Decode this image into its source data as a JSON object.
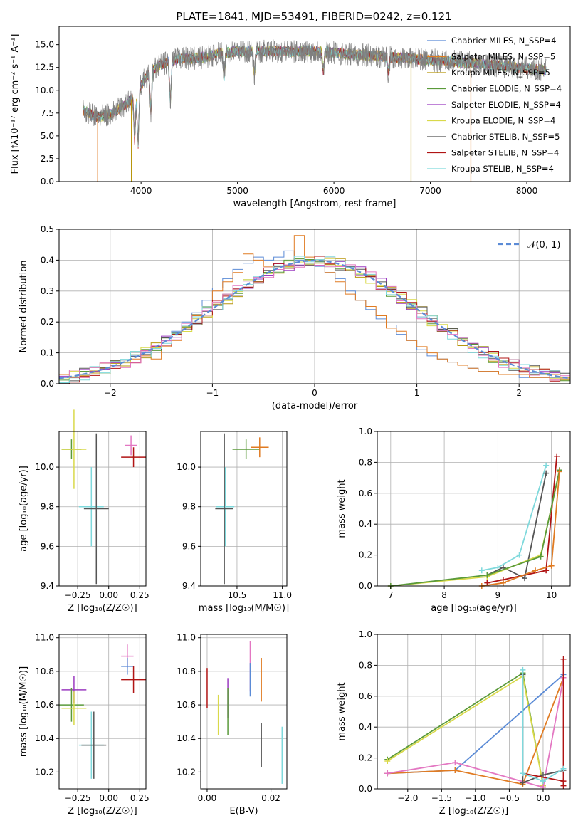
{
  "chart_data": [
    {
      "type": "line",
      "title": "PLATE=1841, MJD=53491, FIBERID=0242, z=0.121",
      "xlabel": "wavelength [Angstrom, rest frame]",
      "ylabel": "Flux [f$_\\lambda$10$^{-17}$ erg cm$^{-2}$ s$^{-1}$ A$^{-1}$]",
      "ylabel_display": "Flux [fλ10⁻¹⁷ erg cm⁻² s⁻¹ A⁻¹]",
      "xlim": [
        3150,
        8450
      ],
      "ylim": [
        0,
        17
      ],
      "xticks": [
        "4000",
        "5000",
        "6000",
        "7000",
        "8000"
      ],
      "yticks": [
        "0.0",
        "2.5",
        "5.0",
        "7.5",
        "10.0",
        "12.5",
        "15.0"
      ],
      "legend_position": "upper right",
      "legend": [
        "Chabrier MILES, N$_{SSP}$=4",
        "Salpeter MILES, N$_{SSP}$=5",
        "Kroupa MILES, N$_{SSP}$=5",
        "Chabrier ELODIE, N$_{SSP}$=4",
        "Salpeter ELODIE, N$_{SSP}$=4",
        "Kroupa ELODIE, N$_{SSP}$=4",
        "Chabrier STELIB, N$_{SSP}$=5",
        "Salpeter STELIB, N$_{SSP}$=4",
        "Kroupa STELIB, N$_{SSP}$=4"
      ],
      "legend_display": [
        "Chabrier MILES, N_SSP=4",
        "Salpeter MILES, N_SSP=5",
        "Kroupa MILES, N_SSP=5",
        "Chabrier ELODIE, N_SSP=4",
        "Salpeter ELODIE, N_SSP=4",
        "Kroupa ELODIE, N_SSP=4",
        "Chabrier STELIB, N_SSP=5",
        "Salpeter STELIB, N_SSP=4",
        "Kroupa STELIB, N_SSP=4"
      ],
      "colors": [
        "#5b8bd6",
        "#e07b22",
        "#b8960c",
        "#5a9a3a",
        "#9b3bc0",
        "#d9d94a",
        "#555555",
        "#b01414",
        "#7fd9dc"
      ],
      "data_color": "#808080",
      "continuum": {
        "x": [
          3400,
          3550,
          3700,
          3850,
          3950,
          4050,
          4200,
          4400,
          4600,
          4800,
          5000,
          5200,
          5400,
          5600,
          5800,
          6000,
          6200,
          6400,
          6600,
          6800,
          7000,
          7200,
          7400,
          7600,
          7800,
          8000,
          8200
        ],
        "y": [
          7.8,
          7.0,
          7.5,
          8.5,
          9.5,
          11.5,
          12.8,
          13.5,
          13.5,
          14.0,
          14.3,
          14.2,
          14.3,
          14.2,
          14.3,
          14.1,
          13.9,
          13.8,
          13.6,
          13.5,
          13.3,
          13.2,
          13.0,
          12.8,
          12.6,
          12.4,
          12.2
        ]
      },
      "absorption_lines": [
        {
          "x": 3934,
          "y": 4.5
        },
        {
          "x": 3969,
          "y": 3.8
        },
        {
          "x": 4102,
          "y": 7.5
        },
        {
          "x": 4304,
          "y": 8.5
        },
        {
          "x": 4861,
          "y": 11.0
        },
        {
          "x": 5175,
          "y": 11.5
        },
        {
          "x": 5890,
          "y": 12.0
        },
        {
          "x": 6563,
          "y": 12.0
        }
      ],
      "model_dips": [
        {
          "x": 3550,
          "y": 0.0,
          "color": "#e07b22"
        },
        {
          "x": 3900,
          "y": 0.0,
          "color": "#b8960c"
        },
        {
          "x": 6800,
          "y": 0.0,
          "color": "#b8960c"
        },
        {
          "x": 7420,
          "y": 0.0,
          "color": "#e07b22"
        }
      ]
    },
    {
      "type": "histogram",
      "xlabel": "(data-model)/error",
      "ylabel": "Normed distribution",
      "xlim": [
        -2.5,
        2.5
      ],
      "ylim": [
        0,
        0.5
      ],
      "xticks": [
        "−2",
        "−1",
        "0",
        "1",
        "2"
      ],
      "yticks": [
        "0.0",
        "0.1",
        "0.2",
        "0.3",
        "0.4",
        "0.5"
      ],
      "grid": true,
      "legend": [
        "$\\mathcal{N}(0,1)$"
      ],
      "legend_display": "𝒩(0, 1)",
      "legend_position": "upper right",
      "gaussian": {
        "mu": 0,
        "sigma": 1,
        "color": "#5b8bd6"
      },
      "bin_width": 0.1,
      "note_colors": [
        "#5b8bd6",
        "#e07b22",
        "#b8960c",
        "#5a9a3a",
        "#9b3bc0",
        "#d9d94a",
        "#555555",
        "#b01414",
        "#7fd9dc",
        "#e377c2"
      ],
      "series": [
        {
          "name": "Chabrier MILES",
          "color": "#5b8bd6",
          "values": [
            0.02,
            0.02,
            0.03,
            0.04,
            0.05,
            0.06,
            0.07,
            0.09,
            0.1,
            0.12,
            0.14,
            0.17,
            0.2,
            0.23,
            0.27,
            0.31,
            0.34,
            0.37,
            0.39,
            0.41,
            0.4,
            0.41,
            0.43,
            0.4,
            0.39,
            0.38,
            0.36,
            0.34,
            0.3,
            0.27,
            0.24,
            0.21,
            0.19,
            0.16,
            0.14,
            0.11,
            0.09,
            0.08,
            0.07,
            0.06,
            0.05,
            0.04,
            0.04,
            0.03,
            0.03,
            0.02,
            0.02,
            0.02,
            0.02,
            0.02
          ]
        },
        {
          "name": "Salpeter MILES",
          "color": "#e07b22",
          "values": [
            0.03,
            0.02,
            0.02,
            0.04,
            0.05,
            0.06,
            0.07,
            0.08,
            0.09,
            0.08,
            0.12,
            0.14,
            0.18,
            0.22,
            0.25,
            0.3,
            0.33,
            0.36,
            0.42,
            0.4,
            0.38,
            0.39,
            0.38,
            0.48,
            0.41,
            0.39,
            0.36,
            0.33,
            0.29,
            0.27,
            0.25,
            0.22,
            0.18,
            0.17,
            0.14,
            0.12,
            0.1,
            0.08,
            0.07,
            0.06,
            0.05,
            0.04,
            0.04,
            0.03,
            0.03,
            0.03,
            0.02,
            0.02,
            0.03,
            0.02
          ]
        }
      ]
    },
    {
      "type": "scatter",
      "xlabel": "Z [log$_{10}$(Z/Z$_\\odot$)]",
      "xlabel_display": "Z [log₁₀(Z/Z☉)]",
      "ylabel": "age  [log$_{10}$(age/yr)]",
      "ylabel_display": "age  [log₁₀(age/yr)]",
      "xlim": [
        -0.4,
        0.3
      ],
      "ylim": [
        9.4,
        10.18
      ],
      "xticks": [
        "−0.25",
        "0.00",
        "0.25"
      ],
      "yticks": [
        "9.4",
        "9.6",
        "9.8",
        "10.0"
      ],
      "grid": true,
      "points": [
        {
          "x": -0.3,
          "y": 10.09,
          "xerr": 0.08,
          "yerr": 0.05,
          "color": "#5a9a3a"
        },
        {
          "x": -0.28,
          "y": 10.09,
          "xerr": 0.1,
          "yerr": 0.2,
          "color": "#d9d94a"
        },
        {
          "x": 0.18,
          "y": 10.11,
          "xerr": 0.05,
          "yerr": 0.05,
          "color": "#e377c2"
        },
        {
          "x": 0.2,
          "y": 10.05,
          "xerr": 0.1,
          "yerr": 0.05,
          "color": "#b01414"
        },
        {
          "x": -0.14,
          "y": 9.8,
          "xerr": 0.1,
          "yerr": 0.2,
          "color": "#7fd9dc"
        },
        {
          "x": -0.1,
          "y": 9.79,
          "xerr": 0.1,
          "yerr": 0.38,
          "color": "#555555"
        }
      ]
    },
    {
      "type": "scatter",
      "xlabel": "mass [log$_{10}$(M/M$_\\odot$)]",
      "xlabel_display": "mass [log₁₀(M/M☉)]",
      "ylabel": "",
      "xlim": [
        10.1,
        11.05
      ],
      "ylim": [
        9.4,
        10.18
      ],
      "xticks": [
        "10.5",
        "11.0"
      ],
      "yticks": [
        "9.4",
        "9.6",
        "9.8",
        "10.0"
      ],
      "grid": true,
      "points": [
        {
          "x": 10.6,
          "y": 10.09,
          "xerr": 0.15,
          "yerr": 0.05,
          "color": "#5a9a3a"
        },
        {
          "x": 10.75,
          "y": 10.1,
          "xerr": 0.1,
          "yerr": 0.05,
          "color": "#e07b22"
        },
        {
          "x": 10.37,
          "y": 9.8,
          "xerr": 0.1,
          "yerr": 0.2,
          "color": "#7fd9dc"
        },
        {
          "x": 10.36,
          "y": 9.79,
          "xerr": 0.1,
          "yerr": 0.38,
          "color": "#555555"
        }
      ]
    },
    {
      "type": "line",
      "xlabel": "age  [log$_{10}$(age/yr)]",
      "xlabel_display": "age  [log₁₀(age/yr)]",
      "ylabel": "mass weight",
      "xlim": [
        6.75,
        10.35
      ],
      "ylim": [
        0,
        1
      ],
      "xticks": [
        "7",
        "8",
        "9",
        "10"
      ],
      "yticks": [
        "0.0",
        "0.2",
        "0.4",
        "0.6",
        "0.8",
        "1.0"
      ],
      "grid": true,
      "series": [
        {
          "name": "Kroupa STELIB",
          "color": "#7fd9dc",
          "x": [
            8.7,
            9.0,
            9.4,
            9.9
          ],
          "y": [
            0.1,
            0.12,
            0.2,
            0.78
          ]
        },
        {
          "name": "Salpeter STELIB",
          "color": "#b01414",
          "x": [
            8.8,
            9.1,
            9.9,
            10.1
          ],
          "y": [
            0.02,
            0.04,
            0.1,
            0.84
          ]
        },
        {
          "name": "Chabrier STELIB",
          "color": "#555555",
          "x": [
            8.8,
            9.1,
            9.5,
            9.9
          ],
          "y": [
            0.07,
            0.12,
            0.05,
            0.73
          ]
        },
        {
          "name": "Kroupa ELODIE",
          "color": "#d9d94a",
          "x": [
            7.0,
            8.8,
            9.8,
            10.15
          ],
          "y": [
            0.0,
            0.06,
            0.2,
            0.74
          ]
        },
        {
          "name": "Chabrier ELODIE",
          "color": "#5a9a3a",
          "x": [
            7.0,
            8.8,
            9.8,
            10.15
          ],
          "y": [
            0.0,
            0.07,
            0.19,
            0.75
          ]
        },
        {
          "name": "Salpeter MILES",
          "color": "#e07b22",
          "x": [
            8.7,
            9.1,
            9.7,
            10.0,
            10.15
          ],
          "y": [
            0.0,
            0.02,
            0.1,
            0.13,
            0.74
          ]
        }
      ]
    },
    {
      "type": "scatter",
      "xlabel": "Z [log$_{10}$(Z/Z$_\\odot$)]",
      "xlabel_display": "Z [log₁₀(Z/Z☉)]",
      "ylabel": "mass [log$_{10}$(M/M$_\\odot$)]",
      "ylabel_display": "mass [log₁₀(M/M☉)]",
      "xlim": [
        -0.4,
        0.3
      ],
      "ylim": [
        10.1,
        11.02
      ],
      "xticks": [
        "−0.25",
        "0.00",
        "0.25"
      ],
      "yticks": [
        "10.2",
        "10.4",
        "10.6",
        "10.8",
        "11.0"
      ],
      "grid": true,
      "points": [
        {
          "x": 0.15,
          "y": 10.89,
          "xerr": 0.05,
          "yerr": 0.07,
          "color": "#e377c2"
        },
        {
          "x": 0.15,
          "y": 10.83,
          "xerr": 0.05,
          "yerr": 0.05,
          "color": "#5b8bd6"
        },
        {
          "x": 0.2,
          "y": 10.75,
          "xerr": 0.1,
          "yerr": 0.08,
          "color": "#b01414"
        },
        {
          "x": -0.28,
          "y": 10.69,
          "xerr": 0.1,
          "yerr": 0.08,
          "color": "#9b3bc0"
        },
        {
          "x": -0.3,
          "y": 10.6,
          "xerr": 0.1,
          "yerr": 0.1,
          "color": "#5a9a3a"
        },
        {
          "x": -0.28,
          "y": 10.58,
          "xerr": 0.1,
          "yerr": 0.1,
          "color": "#d9d94a"
        },
        {
          "x": -0.14,
          "y": 10.36,
          "xerr": 0.1,
          "yerr": 0.2,
          "color": "#7fd9dc"
        },
        {
          "x": -0.12,
          "y": 10.36,
          "xerr": 0.1,
          "yerr": 0.2,
          "color": "#555555"
        }
      ]
    },
    {
      "type": "errorbar",
      "xlabel": "E(B-V)",
      "ylabel": "",
      "xlim": [
        -0.002,
        0.025
      ],
      "ylim": [
        10.1,
        11.02
      ],
      "xticks": [
        "0.00",
        "0.02"
      ],
      "yticks": [
        "10.2",
        "10.4",
        "10.6",
        "10.8",
        "11.0"
      ],
      "grid": true,
      "points": [
        {
          "x": 0.0,
          "y": 10.7,
          "yerr": 0.12,
          "color": "#b01414"
        },
        {
          "x": 0.0035,
          "y": 10.54,
          "yerr": 0.12,
          "color": "#d9d94a"
        },
        {
          "x": 0.0065,
          "y": 10.64,
          "yerr": 0.12,
          "color": "#9b3bc0"
        },
        {
          "x": 0.0065,
          "y": 10.56,
          "yerr": 0.14,
          "color": "#5a9a3a"
        },
        {
          "x": 0.0135,
          "y": 10.83,
          "yerr": 0.15,
          "color": "#e377c2"
        },
        {
          "x": 0.0135,
          "y": 10.75,
          "yerr": 0.1,
          "color": "#5b8bd6"
        },
        {
          "x": 0.017,
          "y": 10.75,
          "yerr": 0.13,
          "color": "#e07b22"
        },
        {
          "x": 0.017,
          "y": 10.36,
          "yerr": 0.13,
          "color": "#555555"
        },
        {
          "x": 0.0235,
          "y": 10.3,
          "yerr": 0.17,
          "color": "#7fd9dc"
        }
      ]
    },
    {
      "type": "line",
      "xlabel": "Z [log$_{10}$(Z/Z$_\\odot$)]",
      "xlabel_display": "Z [log₁₀(Z/Z☉)]",
      "ylabel": "mass weight",
      "xlim": [
        -2.45,
        0.4
      ],
      "ylim": [
        0,
        1
      ],
      "xticks": [
        "−2.0",
        "−1.5",
        "−1.0",
        "−0.5",
        "0.0"
      ],
      "yticks": [
        "0.0",
        "0.2",
        "0.4",
        "0.6",
        "0.8",
        "1.0"
      ],
      "grid": true,
      "series": [
        {
          "name": "Chabrier ELODIE",
          "color": "#5a9a3a",
          "x": [
            -2.3,
            -0.3,
            0.0
          ],
          "y": [
            0.19,
            0.75,
            0.02
          ]
        },
        {
          "name": "Kroupa ELODIE",
          "color": "#d9d94a",
          "x": [
            -2.3,
            -0.3,
            0.0
          ],
          "y": [
            0.18,
            0.73,
            0.02
          ]
        },
        {
          "name": "Chabrier MILES",
          "color": "#5b8bd6",
          "x": [
            -2.3,
            -1.3,
            0.3
          ],
          "y": [
            0.1,
            0.12,
            0.74
          ]
        },
        {
          "name": "Salpeter MILES",
          "color": "#e07b22",
          "x": [
            -2.3,
            -1.3,
            -0.3,
            0.3
          ],
          "y": [
            0.1,
            0.12,
            0.03,
            0.72
          ]
        },
        {
          "name": "Kroupa MILES",
          "color": "#e377c2",
          "x": [
            -2.3,
            -1.3,
            0.0,
            0.3
          ],
          "y": [
            0.1,
            0.17,
            0.01,
            0.72
          ]
        },
        {
          "name": "Chabrier STELIB",
          "color": "#555555",
          "x": [
            -0.3,
            -0.3,
            0.0,
            0.3
          ],
          "y": [
            0.74,
            0.04,
            0.09,
            0.12
          ]
        },
        {
          "name": "Salpeter STELIB",
          "color": "#b01414",
          "x": [
            -0.3,
            0.3,
            0.3,
            0.3
          ],
          "y": [
            0.1,
            0.05,
            0.84,
            0.02
          ]
        },
        {
          "name": "Kroupa STELIB",
          "color": "#7fd9dc",
          "x": [
            -0.3,
            -0.3,
            0.0,
            0.3
          ],
          "y": [
            0.77,
            0.1,
            0.05,
            0.13
          ]
        }
      ]
    }
  ]
}
